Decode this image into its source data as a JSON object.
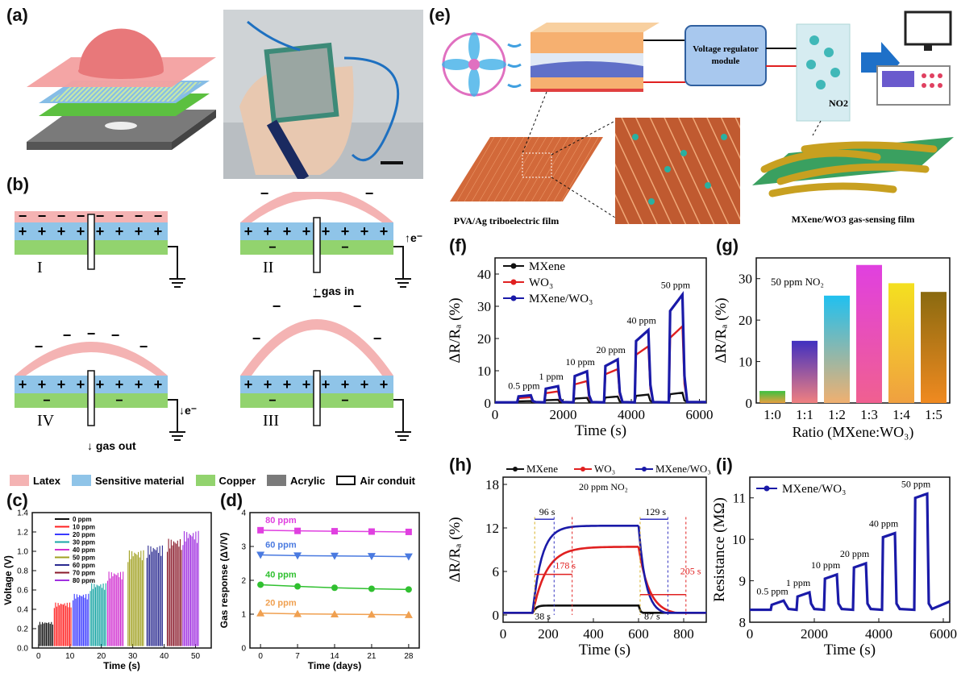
{
  "labels": {
    "a": "(a)",
    "b": "(b)",
    "c": "(c)",
    "d": "(d)",
    "e": "(e)",
    "f": "(f)",
    "g": "(g)",
    "h": "(h)",
    "i": "(i)"
  },
  "colors": {
    "latex": "#f4b3b3",
    "sensitive": "#8fc4e8",
    "copper": "#92d36e",
    "acrylic": "#7a7a7a",
    "navy": "#1a1aa8",
    "red": "#e02020",
    "black": "#111111"
  },
  "schematic": {
    "stages": [
      "I",
      "II",
      "IV",
      "III"
    ],
    "gas_in": "gas in",
    "gas_out": "gas out",
    "electron": "e⁻",
    "legend": [
      {
        "label": "Latex",
        "color": "#f4b3b3"
      },
      {
        "label": "Sensitive material",
        "color": "#8fc4e8"
      },
      {
        "label": "Copper",
        "color": "#92d36e"
      },
      {
        "label": "Acrylic",
        "color": "#7a7a7a"
      },
      {
        "label": "Air conduit",
        "color": "#ffffff"
      }
    ]
  },
  "system_e": {
    "module": "Voltage regulator module",
    "gas": "NO2",
    "film1": "PVA/Ag triboelectric film",
    "film2": "MXene/WO3 gas-sensing film"
  },
  "chart_data": [
    {
      "id": "c",
      "type": "bar",
      "xlabel": "Time (s)",
      "ylabel": "Voltage (V)",
      "xlim": [
        -2,
        55
      ],
      "ylim": [
        0,
        1.4
      ],
      "xticks": [
        0,
        10,
        20,
        30,
        40,
        50
      ],
      "yticks": [
        0.0,
        0.2,
        0.4,
        0.6,
        0.8,
        1.0,
        1.2,
        1.4
      ],
      "series": [
        {
          "name": "0 ppm",
          "color": "#111111",
          "x": [
            0,
            5
          ],
          "value": 0.27
        },
        {
          "name": "10 ppm",
          "color": "#ff2020",
          "x": [
            5,
            11
          ],
          "value": 0.47
        },
        {
          "name": "20 ppm",
          "color": "#3a3aff",
          "x": [
            11,
            16.5
          ],
          "value": 0.56
        },
        {
          "name": "30 ppm",
          "color": "#1aa5a5",
          "x": [
            16.5,
            22
          ],
          "value": 0.67
        },
        {
          "name": "40 ppm",
          "color": "#d030d0",
          "x": [
            22,
            27.5
          ],
          "value": 0.79
        },
        {
          "name": "50 ppm",
          "color": "#a0a020",
          "x": [
            28.5,
            34
          ],
          "value": 1.01
        },
        {
          "name": "60 ppm",
          "color": "#2a2a90",
          "x": [
            34.5,
            40
          ],
          "value": 1.06
        },
        {
          "name": "70 ppm",
          "color": "#8a1a2a",
          "x": [
            41,
            46
          ],
          "value": 1.13
        },
        {
          "name": "80 ppm",
          "color": "#a030e0",
          "x": [
            46,
            51.5
          ],
          "value": 1.21
        }
      ]
    },
    {
      "id": "d",
      "type": "line",
      "xlabel": "Time (days)",
      "ylabel": "Gas response (ΔV/V)",
      "xlim": [
        -2,
        30
      ],
      "ylim": [
        0,
        4
      ],
      "xticks": [
        0,
        7,
        14,
        21,
        28
      ],
      "yticks": [
        0,
        1,
        2,
        3,
        4
      ],
      "x": [
        0,
        7,
        14,
        21,
        28
      ],
      "series": [
        {
          "name": "80 ppm",
          "color": "#e040e0",
          "marker": "square",
          "values": [
            3.48,
            3.46,
            3.45,
            3.44,
            3.43
          ]
        },
        {
          "name": "60 ppm",
          "color": "#4a7ae0",
          "marker": "tri-down",
          "values": [
            2.75,
            2.73,
            2.72,
            2.71,
            2.7
          ]
        },
        {
          "name": "40 ppm",
          "color": "#30c030",
          "marker": "circle",
          "values": [
            1.87,
            1.82,
            1.78,
            1.75,
            1.73
          ]
        },
        {
          "name": "20 ppm",
          "color": "#f0a050",
          "marker": "tri-up",
          "values": [
            1.03,
            1.01,
            1.0,
            0.99,
            0.98
          ]
        }
      ]
    },
    {
      "id": "f",
      "type": "line",
      "xlabel": "Time (s)",
      "ylabel": "ΔR/Rₐ (%)",
      "xlim": [
        0,
        6200
      ],
      "ylim": [
        0,
        45
      ],
      "xticks": [
        0,
        2000,
        4000,
        6000
      ],
      "yticks": [
        0,
        10,
        20,
        30,
        40
      ],
      "pulses": [
        [
          650,
          1050
        ],
        [
          1450,
          1850
        ],
        [
          2300,
          2700
        ],
        [
          3200,
          3600
        ],
        [
          4100,
          4500
        ],
        [
          5100,
          5500
        ]
      ],
      "pulse_labels": [
        "0.5 ppm",
        "1 ppm",
        "10 ppm",
        "20 ppm",
        "40 ppm",
        "50 ppm"
      ],
      "series": [
        {
          "name": "MXene",
          "color": "#111111",
          "values": [
            0.6,
            1.0,
            1.6,
            2.0,
            2.6,
            3.2
          ]
        },
        {
          "name": "WO₃",
          "color": "#e02020",
          "values": [
            1.8,
            3.6,
            6.8,
            10.5,
            17.6,
            23.8
          ]
        },
        {
          "name": "MXene/WO₃",
          "color": "#1a1aa8",
          "values": [
            2.4,
            5.2,
            9.8,
            13.5,
            22.6,
            33.6
          ]
        }
      ]
    },
    {
      "id": "g",
      "type": "bar",
      "xlabel": "Ratio (MXene:WO₃)",
      "ylabel": "ΔR/Rₐ (%)",
      "annotation": "50 ppm NO₂",
      "ylim": [
        0,
        35
      ],
      "yticks": [
        0,
        10,
        20,
        30
      ],
      "categories": [
        "1:0",
        "1:1",
        "1:2",
        "1:3",
        "1:4",
        "1:5"
      ],
      "values": [
        2.9,
        15.0,
        25.9,
        33.3,
        28.9,
        26.8
      ],
      "bar_gradients": [
        [
          "#3cc040",
          "#e8a040"
        ],
        [
          "#4030c0",
          "#f08080"
        ],
        [
          "#20c0f0",
          "#f0b070"
        ],
        [
          "#e040e0",
          "#f06090"
        ],
        [
          "#f4e020",
          "#f0a040"
        ],
        [
          "#8a6a10",
          "#f08a20"
        ]
      ]
    },
    {
      "id": "h",
      "type": "line",
      "xlabel": "Time (s)",
      "ylabel": "ΔR/Rₐ (%)",
      "annotation": "20 ppm NO₂",
      "xlim": [
        0,
        900
      ],
      "ylim": [
        -1,
        19
      ],
      "xticks": [
        0,
        200,
        400,
        600,
        800
      ],
      "yticks": [
        0,
        6,
        12,
        18
      ],
      "series": [
        {
          "name": "MXene",
          "color": "#111111",
          "plateau": 1.3
        },
        {
          "name": "WO₃",
          "color": "#e02020",
          "plateau": 9.4
        },
        {
          "name": "MXene/WO₃",
          "color": "#1a1aa8",
          "plateau": 12.3
        }
      ],
      "times": [
        {
          "label": "96 s"
        },
        {
          "label": "178 s"
        },
        {
          "label": "38 s"
        },
        {
          "label": "129 s"
        },
        {
          "label": "205 s"
        },
        {
          "label": "87 s"
        }
      ]
    },
    {
      "id": "i",
      "type": "line",
      "xlabel": "Time (s)",
      "ylabel": "Resistance (MΩ)",
      "xlim": [
        0,
        6200
      ],
      "ylim": [
        8,
        11.5
      ],
      "xticks": [
        0,
        2000,
        4000,
        6000
      ],
      "yticks": [
        8,
        9,
        10,
        11
      ],
      "series": [
        {
          "name": "MXene/WO₃",
          "color": "#1a1aa8"
        }
      ],
      "baseline": 8.3,
      "pulses": [
        [
          650,
          1050
        ],
        [
          1450,
          1850
        ],
        [
          2300,
          2700
        ],
        [
          3200,
          3600
        ],
        [
          4100,
          4500
        ],
        [
          5100,
          5500
        ]
      ],
      "pulse_labels": [
        "0.5 ppm",
        "1 ppm",
        "10 ppm",
        "20 ppm",
        "40 ppm",
        "50 ppm"
      ],
      "values": [
        8.52,
        8.72,
        9.15,
        9.42,
        10.15,
        11.1
      ]
    }
  ]
}
